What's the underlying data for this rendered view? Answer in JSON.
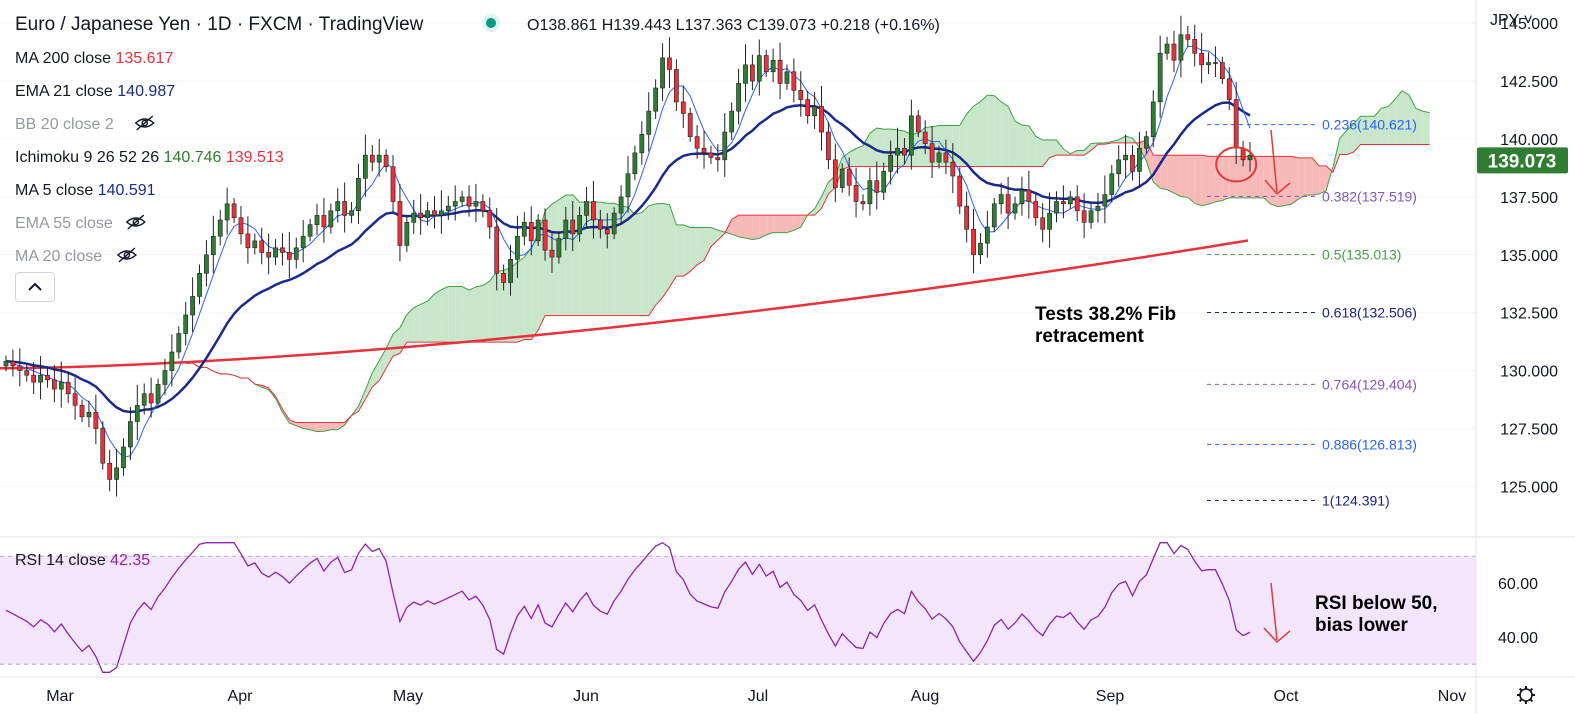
{
  "header": {
    "symbol": "Euro / Japanese Yen · 1D · FXCM · TradingView",
    "ohlc": "O138.861  H139.443  L137.363  C139.073  +0.218 (+0.16%)",
    "currency": "JPY"
  },
  "indicators": [
    {
      "label": "MA 200 close",
      "values": [
        "135.617"
      ],
      "colors": [
        "#e8313b"
      ],
      "hidden": false
    },
    {
      "label": "EMA 21 close",
      "values": [
        "140.987"
      ],
      "colors": [
        "#1a2a8c"
      ],
      "hidden": false
    },
    {
      "label": "BB 20 close 2",
      "values": [],
      "colors": [],
      "hidden": true
    },
    {
      "label": "Ichimoku 9 26 52 26",
      "values": [
        "140.746",
        "139.513"
      ],
      "colors": [
        "#2e7d32",
        "#e8313b"
      ],
      "hidden": false
    },
    {
      "label": "MA 5 close",
      "values": [
        "140.591"
      ],
      "colors": [
        "#1a2a8c"
      ],
      "hidden": false
    },
    {
      "label": "EMA 55 close",
      "values": [],
      "colors": [],
      "hidden": true
    },
    {
      "label": "MA 20 close",
      "values": [],
      "colors": [],
      "hidden": true
    }
  ],
  "annotations": {
    "fib_note": [
      "Tests 38.2% Fib",
      "retracement"
    ],
    "rsi_note": [
      "RSI below 50,",
      "bias lower"
    ]
  },
  "chart_data": [
    {
      "type": "candlestick",
      "series_name": "EURJPY",
      "x_axis_labels": [
        "Mar",
        "Apr",
        "May",
        "Jun",
        "Jul",
        "Aug",
        "Sep",
        "Oct",
        "Nov"
      ],
      "y_ticks": [
        125.0,
        127.5,
        130.0,
        132.5,
        135.0,
        137.5,
        140.0,
        142.5,
        145.0
      ],
      "ylim": [
        122.9,
        146.0
      ],
      "last_price": "139.073",
      "fibonacci": [
        {
          "label": "0.236(140.621)",
          "level": 140.621,
          "color": "#2962ff"
        },
        {
          "label": "0.382(137.519)",
          "level": 137.519,
          "color": "#7e57c2"
        },
        {
          "label": "0.5(135.013)",
          "level": 135.013,
          "color": "#43a047"
        },
        {
          "label": "0.618(132.506)",
          "level": 132.506,
          "color": "#1a237e"
        },
        {
          "label": "0.764(129.404)",
          "level": 129.404,
          "color": "#7e57c2"
        },
        {
          "label": "0.886(126.813)",
          "level": 126.813,
          "color": "#2962ff"
        },
        {
          "label": "1(124.391)",
          "level": 124.391,
          "color": "#1a237e"
        }
      ],
      "close": [
        130.4,
        130.2,
        130.0,
        129.8,
        129.5,
        129.8,
        129.6,
        129.2,
        129.5,
        129.0,
        128.5,
        128.0,
        128.2,
        127.5,
        126.0,
        125.3,
        125.8,
        126.7,
        127.8,
        128.5,
        129.0,
        128.6,
        129.4,
        130.0,
        130.8,
        131.6,
        132.4,
        133.2,
        134.2,
        135.0,
        135.8,
        136.5,
        137.2,
        136.6,
        135.9,
        135.3,
        135.6,
        135.1,
        134.9,
        135.3,
        135.1,
        134.8,
        135.3,
        135.8,
        136.3,
        136.7,
        136.2,
        136.9,
        137.3,
        136.7,
        136.9,
        138.3,
        139.3,
        139.0,
        139.3,
        138.8,
        137.3,
        135.4,
        136.4,
        136.8,
        136.6,
        136.9,
        136.7,
        136.9,
        137.1,
        137.3,
        137.5,
        137.1,
        137.3,
        136.9,
        136.2,
        134.2,
        133.8,
        134.8,
        135.8,
        136.4,
        135.6,
        136.5,
        135.2,
        134.9,
        135.7,
        136.5,
        135.9,
        136.7,
        137.3,
        136.5,
        136.1,
        135.9,
        136.8,
        137.5,
        138.5,
        139.4,
        140.2,
        141.2,
        142.2,
        143.5,
        143.0,
        141.6,
        141.1,
        140.1,
        139.6,
        139.4,
        139.2,
        139.1,
        140.3,
        141.2,
        142.4,
        143.2,
        142.5,
        143.6,
        142.9,
        143.4,
        142.4,
        142.9,
        142.1,
        141.7,
        141.0,
        141.4,
        140.3,
        139.1,
        137.9,
        138.7,
        138.0,
        137.3,
        137.2,
        138.2,
        137.7,
        138.6,
        139.3,
        139.6,
        139.3,
        141.0,
        140.3,
        139.8,
        139.0,
        139.4,
        139.0,
        138.4,
        137.1,
        136.1,
        135.0,
        135.5,
        136.2,
        137.2,
        137.6,
        136.8,
        137.2,
        137.8,
        137.3,
        136.6,
        136.1,
        136.8,
        137.3,
        137.2,
        137.5,
        136.9,
        136.4,
        136.9,
        137.1,
        137.6,
        138.5,
        139.1,
        139.3,
        138.6,
        139.6,
        140.1,
        141.6,
        143.7,
        144.1,
        143.4,
        144.5,
        144.3,
        143.7,
        143.2,
        143.3,
        143.3,
        142.6,
        141.7,
        139.6,
        139.1,
        139.3
      ],
      "ma200_start": 130.1,
      "ma200_end": 135.617,
      "rsi": {
        "label": "RSI 14 close",
        "value": "42.35",
        "y_ticks": [
          40.0,
          60.0
        ],
        "upper_band": 70,
        "lower_band": 30,
        "ylim": [
          26,
          76
        ]
      }
    }
  ]
}
